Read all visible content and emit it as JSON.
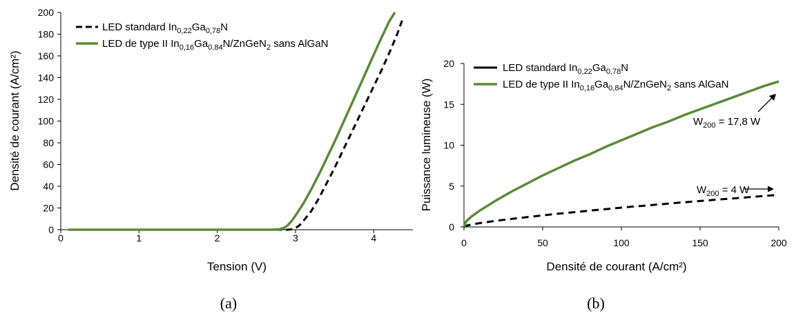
{
  "chart_data": [
    {
      "type": "line",
      "caption": "(a)",
      "xlabel": "Tension (V)",
      "ylabel": "Densité de courant (A/cm²)",
      "xlim": [
        0,
        4.5
      ],
      "ylim": [
        0,
        200
      ],
      "xticks": [
        "0",
        "1",
        "2",
        "3",
        "4"
      ],
      "yticks": [
        "0",
        "20",
        "40",
        "60",
        "80",
        "100",
        "120",
        "140",
        "160",
        "180",
        "200"
      ],
      "grid": false,
      "legend_position": "top-left",
      "series": [
        {
          "name": "LED standard In0,22Ga0,78N",
          "name_parts": {
            "pre": "LED standard In",
            "sub1": "0,22",
            "mid": "Ga",
            "sub2": "0,78",
            "post": "N"
          },
          "color": "#000000",
          "style": "dashed",
          "x": [
            0.1,
            2.9,
            2.95,
            3.0,
            3.05,
            3.1,
            3.2,
            3.3,
            3.4,
            3.5,
            3.6,
            3.7,
            3.8,
            3.9,
            4.0,
            4.1,
            4.2,
            4.3,
            4.38
          ],
          "y": [
            0,
            0,
            0.3,
            1.5,
            4,
            8,
            17,
            29,
            43,
            57,
            72,
            87,
            102,
            117,
            132,
            147,
            163,
            180,
            196
          ]
        },
        {
          "name": "LED de type II In0,16Ga0,84N/ZnGeN2 sans AlGaN",
          "name_parts": {
            "pre": "LED de type II In",
            "sub1": "0,16",
            "mid": "Ga",
            "sub2": "0,84",
            "mid2": "N/ZnGeN",
            "sub3": "2",
            "post": " sans AlGaN"
          },
          "color": "#5b8a3a",
          "style": "solid",
          "x": [
            0.1,
            2.7,
            2.8,
            2.85,
            2.9,
            2.95,
            3.0,
            3.1,
            3.2,
            3.3,
            3.4,
            3.5,
            3.6,
            3.7,
            3.8,
            3.9,
            4.0,
            4.1,
            4.2,
            4.27
          ],
          "y": [
            0,
            0,
            0.5,
            1.5,
            4,
            8,
            13,
            24,
            37,
            51,
            66,
            81,
            97,
            113,
            129,
            145,
            161,
            177,
            192,
            200
          ]
        }
      ]
    },
    {
      "type": "line",
      "caption": "(b)",
      "xlabel": "Densité de courant (A/cm²)",
      "ylabel": "Puissance lumineuse (W)",
      "xlim": [
        0,
        200
      ],
      "ylim": [
        0,
        20
      ],
      "xticks": [
        "0",
        "50",
        "100",
        "150",
        "200"
      ],
      "yticks": [
        "0",
        "5",
        "10",
        "15",
        "20"
      ],
      "grid": false,
      "legend_position": "top-left",
      "series": [
        {
          "name": "LED standard In0,22Ga0,78N",
          "name_parts": {
            "pre": "LED standard In",
            "sub1": "0,22",
            "mid": "Ga",
            "sub2": "0,78",
            "post": "N"
          },
          "color": "#000000",
          "style": "dashed",
          "x": [
            0,
            2,
            5,
            10,
            20,
            30,
            40,
            50,
            60,
            70,
            80,
            90,
            100,
            110,
            120,
            130,
            140,
            150,
            160,
            170,
            180,
            190,
            200
          ],
          "y": [
            0,
            0.18,
            0.3,
            0.46,
            0.74,
            0.98,
            1.2,
            1.42,
            1.62,
            1.81,
            2.0,
            2.18,
            2.36,
            2.53,
            2.69,
            2.86,
            3.02,
            3.17,
            3.33,
            3.48,
            3.63,
            3.78,
            3.93
          ]
        },
        {
          "name": "LED de type II In0,16Ga0,84N/ZnGeN2 sans AlGaN",
          "name_parts": {
            "pre": "LED de type II In",
            "sub1": "0,16",
            "mid": "Ga",
            "sub2": "0,84",
            "mid2": "N/ZnGeN",
            "sub3": "2",
            "post": " sans AlGaN"
          },
          "color": "#5b8a3a",
          "style": "solid",
          "x": [
            0,
            1,
            2,
            5,
            10,
            20,
            30,
            40,
            50,
            60,
            70,
            80,
            90,
            100,
            110,
            120,
            130,
            140,
            150,
            160,
            170,
            180,
            190,
            200
          ],
          "y": [
            0,
            0.55,
            0.8,
            1.3,
            2.0,
            3.2,
            4.3,
            5.3,
            6.3,
            7.2,
            8.1,
            8.9,
            9.8,
            10.6,
            11.4,
            12.2,
            12.9,
            13.7,
            14.4,
            15.1,
            15.8,
            16.5,
            17.2,
            17.8
          ]
        }
      ],
      "annotations": [
        {
          "label_pre": "W",
          "label_sub": "200",
          "label_post": " = 17,8 W",
          "target_x": 200,
          "target_y": 17.8
        },
        {
          "label_pre": "W",
          "label_sub": "200",
          "label_post": " = 4 W",
          "target_x": 200,
          "target_y": 4
        }
      ]
    }
  ]
}
